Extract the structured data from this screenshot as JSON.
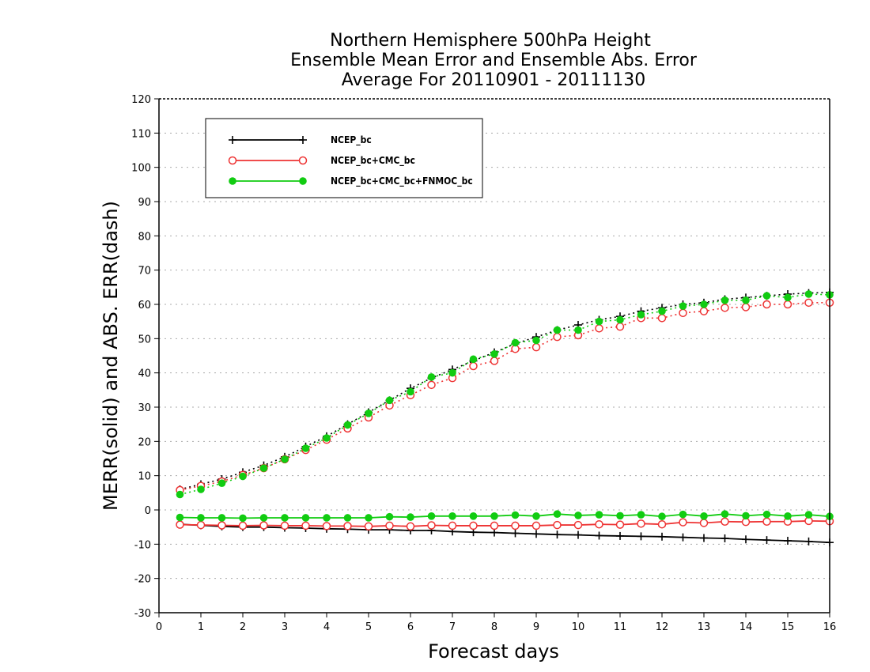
{
  "chart_data": {
    "type": "line",
    "title": [
      "Northern Hemisphere 500hPa Height",
      "Ensemble Mean Error and Ensemble Abs. Error",
      "Average For 20110901 - 20111130"
    ],
    "xlabel": "Forecast days",
    "ylabel": "MERR(solid) and ABS. ERR(dash)",
    "xlim": [
      0,
      16
    ],
    "ylim": [
      -30,
      120
    ],
    "xticks": [
      0,
      1,
      2,
      3,
      4,
      5,
      6,
      7,
      8,
      9,
      10,
      11,
      12,
      13,
      14,
      15,
      16
    ],
    "yticks": [
      -30,
      -20,
      -10,
      0,
      10,
      20,
      30,
      40,
      50,
      60,
      70,
      80,
      90,
      100,
      110,
      120
    ],
    "grid": true,
    "legend_position": "top-left",
    "x": [
      0.5,
      1.0,
      1.5,
      2.0,
      2.5,
      3.0,
      3.5,
      4.0,
      4.5,
      5.0,
      5.5,
      6.0,
      6.5,
      7.0,
      7.5,
      8.0,
      8.5,
      9.0,
      9.5,
      10.0,
      10.5,
      11.0,
      11.5,
      12.0,
      12.5,
      13.0,
      13.5,
      14.0,
      14.5,
      15.0,
      15.5,
      16.0
    ],
    "series": [
      {
        "name": "NCEP_bc",
        "color": "#000000",
        "marker": "plus",
        "merr": [
          -4.2,
          -4.5,
          -4.8,
          -5.0,
          -5.0,
          -5.2,
          -5.3,
          -5.5,
          -5.6,
          -5.8,
          -5.8,
          -6.0,
          -6.0,
          -6.3,
          -6.5,
          -6.6,
          -6.8,
          -7.0,
          -7.2,
          -7.3,
          -7.5,
          -7.6,
          -7.7,
          -7.8,
          -8.0,
          -8.2,
          -8.3,
          -8.6,
          -8.8,
          -9.0,
          -9.2,
          -9.5
        ],
        "abs_err": [
          6.0,
          7.5,
          9.0,
          11.0,
          13.0,
          15.5,
          18.5,
          21.5,
          25.0,
          28.5,
          32.0,
          35.5,
          38.5,
          41.0,
          43.5,
          46.0,
          48.5,
          50.5,
          52.5,
          54.0,
          55.5,
          56.5,
          58.0,
          59.0,
          60.0,
          60.5,
          61.5,
          62.0,
          62.5,
          63.0,
          63.3,
          63.5
        ]
      },
      {
        "name": "NCEP_bc+CMC_bc",
        "color": "#ee3333",
        "marker": "circle",
        "merr": [
          -4.3,
          -4.4,
          -4.5,
          -4.6,
          -4.5,
          -4.6,
          -4.6,
          -4.7,
          -4.7,
          -4.8,
          -4.6,
          -4.8,
          -4.5,
          -4.6,
          -4.6,
          -4.6,
          -4.6,
          -4.6,
          -4.4,
          -4.4,
          -4.2,
          -4.3,
          -4.0,
          -4.2,
          -3.6,
          -3.8,
          -3.4,
          -3.5,
          -3.4,
          -3.4,
          -3.2,
          -3.3
        ],
        "abs_err": [
          5.8,
          7.0,
          8.3,
          10.2,
          12.2,
          14.8,
          17.5,
          20.5,
          23.8,
          27.0,
          30.5,
          33.5,
          36.5,
          38.5,
          42.0,
          43.5,
          47.0,
          47.5,
          50.5,
          51.0,
          53.0,
          53.5,
          56.0,
          56.0,
          57.5,
          58.0,
          59.0,
          59.2,
          60.0,
          60.0,
          60.5,
          60.5
        ]
      },
      {
        "name": "NCEP_bc+CMC_bc+FNMOC_bc",
        "color": "#11cc11",
        "marker": "dot",
        "merr": [
          -2.2,
          -2.3,
          -2.3,
          -2.4,
          -2.3,
          -2.3,
          -2.3,
          -2.3,
          -2.3,
          -2.3,
          -2.0,
          -2.1,
          -1.8,
          -1.8,
          -1.8,
          -1.8,
          -1.5,
          -1.8,
          -1.2,
          -1.6,
          -1.4,
          -1.7,
          -1.4,
          -1.9,
          -1.3,
          -1.8,
          -1.2,
          -1.7,
          -1.3,
          -1.8,
          -1.4,
          -1.9
        ],
        "abs_err": [
          4.5,
          6.0,
          7.8,
          9.8,
          12.2,
          14.8,
          18.0,
          21.0,
          24.8,
          28.2,
          32.0,
          34.5,
          38.8,
          40.0,
          44.0,
          45.5,
          48.8,
          49.5,
          52.5,
          52.5,
          55.0,
          55.5,
          57.0,
          58.0,
          59.5,
          60.0,
          61.2,
          61.2,
          62.5,
          62.0,
          63.0,
          62.8
        ]
      }
    ]
  }
}
